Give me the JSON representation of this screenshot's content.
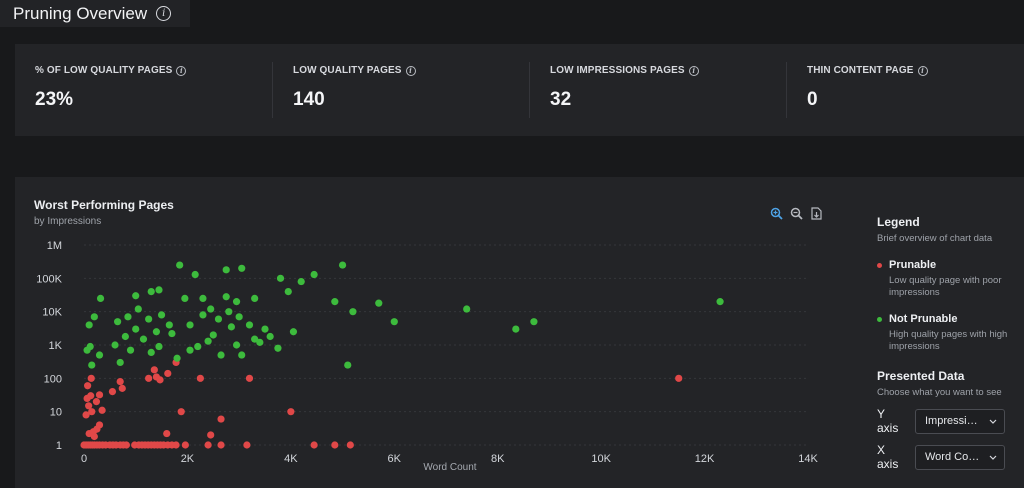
{
  "page": {
    "title": "Pruning Overview",
    "title_icon": "info-icon"
  },
  "stats": [
    {
      "label": "% OF LOW QUALITY PAGES",
      "value": "23%"
    },
    {
      "label": "LOW QUALITY PAGES",
      "value": "140"
    },
    {
      "label": "LOW IMPRESSIONS PAGES",
      "value": "32"
    },
    {
      "label": "THIN CONTENT PAGE",
      "value": "0"
    }
  ],
  "chart": {
    "title": "Worst Performing Pages",
    "subtitle": "by Impressions",
    "toolbar": [
      "zoom-in-icon",
      "zoom-out-icon",
      "download-icon"
    ]
  },
  "legend": {
    "title": "Legend",
    "description": "Brief overview of chart data",
    "items": [
      {
        "name": "Prunable",
        "desc": "Low quality page with poor impressions",
        "color": "#e04848"
      },
      {
        "name": "Not Prunable",
        "desc": "High quality pages with high impressions",
        "color": "#3dbb3d"
      }
    ]
  },
  "presented": {
    "title": "Presented Data",
    "desc": "Choose what you want to see",
    "y_label": "Y axis",
    "y_value": "Impressions",
    "x_label": "X axis",
    "x_value": "Word Count"
  },
  "chart_data": {
    "type": "scatter",
    "xlabel": "Word Count",
    "ylabel": "",
    "xlim": [
      0,
      14000
    ],
    "ylim": [
      1,
      1000000
    ],
    "y_scale": "log",
    "x_ticks": [
      0,
      2000,
      4000,
      6000,
      8000,
      10000,
      12000,
      14000
    ],
    "x_tick_labels": [
      "0",
      "2K",
      "4K",
      "6K",
      "8K",
      "10K",
      "12K",
      "14K"
    ],
    "y_ticks": [
      1,
      10,
      100,
      1000,
      10000,
      100000,
      1000000
    ],
    "y_tick_labels": [
      "1",
      "10",
      "100",
      "1K",
      "10K",
      "100K",
      "1M"
    ],
    "grid": true,
    "series": [
      {
        "name": "Prunable",
        "color": "#e04848",
        "points": [
          [
            0,
            1
          ],
          [
            40,
            1
          ],
          [
            80,
            1
          ],
          [
            120,
            1
          ],
          [
            160,
            1
          ],
          [
            200,
            1
          ],
          [
            250,
            1
          ],
          [
            300,
            1
          ],
          [
            360,
            1
          ],
          [
            420,
            1
          ],
          [
            500,
            1
          ],
          [
            560,
            1
          ],
          [
            620,
            1
          ],
          [
            700,
            1
          ],
          [
            760,
            1
          ],
          [
            820,
            1
          ],
          [
            980,
            1
          ],
          [
            1060,
            1
          ],
          [
            1120,
            1
          ],
          [
            1180,
            1
          ],
          [
            1240,
            1
          ],
          [
            1300,
            1
          ],
          [
            1360,
            1
          ],
          [
            1420,
            1
          ],
          [
            1480,
            1
          ],
          [
            1540,
            1
          ],
          [
            1620,
            1
          ],
          [
            1700,
            1
          ],
          [
            1780,
            1
          ],
          [
            1960,
            1
          ],
          [
            2400,
            1
          ],
          [
            2650,
            1
          ],
          [
            3150,
            1
          ],
          [
            4450,
            1
          ],
          [
            4850,
            1
          ],
          [
            5150,
            1
          ],
          [
            100,
            2.2
          ],
          [
            180,
            2.5
          ],
          [
            250,
            3
          ],
          [
            300,
            4
          ],
          [
            200,
            1.8
          ],
          [
            2450,
            2
          ],
          [
            1600,
            2.2
          ],
          [
            40,
            8
          ],
          [
            90,
            15
          ],
          [
            150,
            10
          ],
          [
            240,
            20
          ],
          [
            350,
            11
          ],
          [
            60,
            25
          ],
          [
            130,
            30
          ],
          [
            300,
            32
          ],
          [
            1880,
            10
          ],
          [
            2650,
            6
          ],
          [
            4000,
            10
          ],
          [
            70,
            60
          ],
          [
            140,
            100
          ],
          [
            550,
            40
          ],
          [
            700,
            80
          ],
          [
            740,
            50
          ],
          [
            1250,
            100
          ],
          [
            1400,
            110
          ],
          [
            1470,
            90
          ],
          [
            2250,
            100
          ],
          [
            3200,
            100
          ],
          [
            1360,
            180
          ],
          [
            1620,
            140
          ],
          [
            1780,
            300
          ],
          [
            11500,
            100
          ]
        ]
      },
      {
        "name": "Not Prunable",
        "color": "#3dbb3d",
        "points": [
          [
            1850,
            250000
          ],
          [
            3050,
            200000
          ],
          [
            5000,
            250000
          ],
          [
            2150,
            130000
          ],
          [
            2750,
            180000
          ],
          [
            4450,
            130000
          ],
          [
            3800,
            100000
          ],
          [
            3950,
            40000
          ],
          [
            4200,
            80000
          ],
          [
            1450,
            45000
          ],
          [
            1300,
            40000
          ],
          [
            1000,
            30000
          ],
          [
            1950,
            25000
          ],
          [
            2300,
            25000
          ],
          [
            2750,
            28000
          ],
          [
            2950,
            20000
          ],
          [
            3300,
            25000
          ],
          [
            4850,
            20000
          ],
          [
            5200,
            10000
          ],
          [
            5700,
            18000
          ],
          [
            6000,
            5000
          ],
          [
            7400,
            12000
          ],
          [
            8350,
            3000
          ],
          [
            8700,
            5000
          ],
          [
            12300,
            20000
          ],
          [
            320,
            25000
          ],
          [
            100,
            4000
          ],
          [
            200,
            7000
          ],
          [
            650,
            5000
          ],
          [
            850,
            7000
          ],
          [
            1050,
            12000
          ],
          [
            1250,
            6000
          ],
          [
            1500,
            8000
          ],
          [
            1650,
            4000
          ],
          [
            2050,
            4000
          ],
          [
            2300,
            8000
          ],
          [
            2450,
            12000
          ],
          [
            2600,
            6000
          ],
          [
            2800,
            10000
          ],
          [
            3000,
            7000
          ],
          [
            3200,
            4000
          ],
          [
            3500,
            3000
          ],
          [
            3750,
            800
          ],
          [
            4050,
            2500
          ],
          [
            60,
            700
          ],
          [
            120,
            900
          ],
          [
            300,
            500
          ],
          [
            600,
            1000
          ],
          [
            800,
            1800
          ],
          [
            900,
            700
          ],
          [
            1150,
            1500
          ],
          [
            1300,
            600
          ],
          [
            1450,
            900
          ],
          [
            1800,
            400
          ],
          [
            2050,
            700
          ],
          [
            2200,
            900
          ],
          [
            2400,
            1300
          ],
          [
            2650,
            500
          ],
          [
            2950,
            1000
          ],
          [
            3050,
            500
          ],
          [
            3400,
            1200
          ],
          [
            3600,
            1800
          ],
          [
            5100,
            250
          ],
          [
            700,
            300
          ],
          [
            150,
            250
          ],
          [
            1000,
            3000
          ],
          [
            1400,
            2500
          ],
          [
            1700,
            2200
          ],
          [
            2500,
            2000
          ],
          [
            2850,
            3500
          ],
          [
            3300,
            1500
          ]
        ]
      }
    ]
  }
}
